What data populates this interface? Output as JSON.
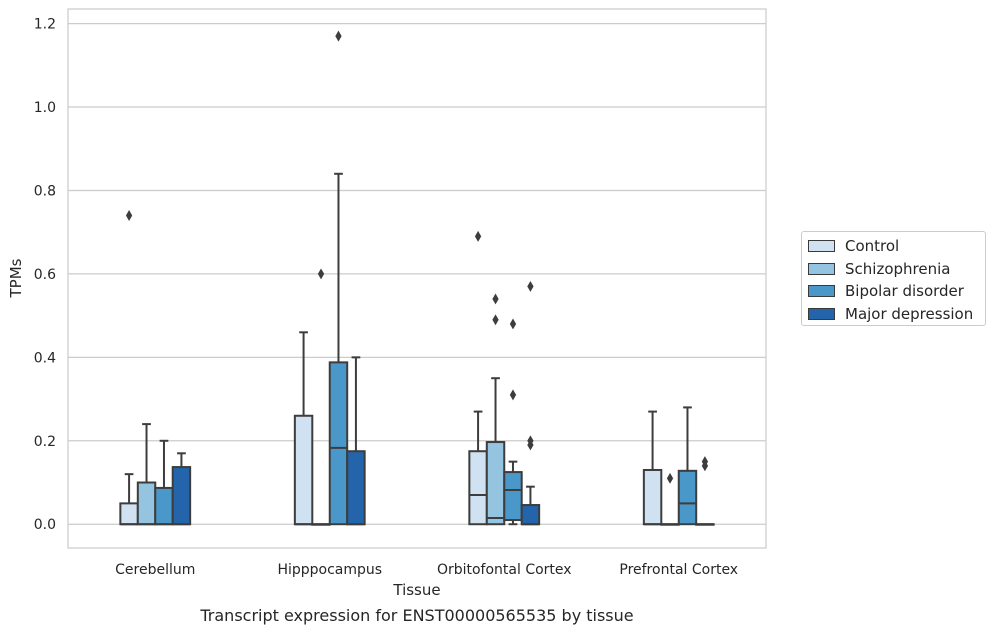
{
  "caption": "Transcript expression for ENST00000565535 by tissue",
  "chart_data": {
    "type": "boxplot",
    "xlabel": "Tissue",
    "ylabel": "TPMs",
    "ylim": [
      -0.057,
      1.235
    ],
    "yticks": [
      0.0,
      0.2,
      0.4,
      0.6,
      0.8,
      1.0,
      1.2
    ],
    "ytick_labels": [
      "0.0",
      "0.2",
      "0.4",
      "0.6",
      "0.8",
      "1.0",
      "1.2"
    ],
    "grid": "horizontal",
    "legend_position": "right-outside",
    "categories": [
      "Cerebellum",
      "Hipppocampus",
      "Orbitofontal Cortex",
      "Prefrontal Cortex"
    ],
    "series": [
      {
        "name": "Control",
        "color": "#d0e1f2",
        "boxes": [
          {
            "q1": 0.0,
            "median": 0.0,
            "q3": 0.05,
            "whislo": 0.0,
            "whishi": 0.12,
            "fliers": [
              0.74
            ]
          },
          {
            "q1": 0.0,
            "median": 0.0,
            "q3": 0.26,
            "whislo": 0.0,
            "whishi": 0.46,
            "fliers": []
          },
          {
            "q1": 0.0,
            "median": 0.07,
            "q3": 0.175,
            "whislo": 0.0,
            "whishi": 0.27,
            "fliers": [
              0.69
            ]
          },
          {
            "q1": 0.0,
            "median": 0.0,
            "q3": 0.13,
            "whislo": 0.0,
            "whishi": 0.27,
            "fliers": []
          }
        ]
      },
      {
        "name": "Schizophrenia",
        "color": "#94c4df",
        "boxes": [
          {
            "q1": 0.0,
            "median": 0.0,
            "q3": 0.1,
            "whislo": 0.0,
            "whishi": 0.24,
            "fliers": []
          },
          {
            "q1": 0.0,
            "median": 0.0,
            "q3": 0.0,
            "whislo": 0.0,
            "whishi": 0.0,
            "fliers": [
              0.6
            ]
          },
          {
            "q1": 0.0,
            "median": 0.015,
            "q3": 0.197,
            "whislo": 0.0,
            "whishi": 0.35,
            "fliers": [
              0.49,
              0.54
            ]
          },
          {
            "q1": 0.0,
            "median": 0.0,
            "q3": 0.0,
            "whislo": 0.0,
            "whishi": 0.0,
            "fliers": [
              0.11
            ]
          }
        ]
      },
      {
        "name": "Bipolar disorder",
        "color": "#4a98c9",
        "boxes": [
          {
            "q1": 0.0,
            "median": 0.0,
            "q3": 0.087,
            "whislo": 0.0,
            "whishi": 0.2,
            "fliers": []
          },
          {
            "q1": 0.0,
            "median": 0.183,
            "q3": 0.388,
            "whislo": 0.0,
            "whishi": 0.84,
            "fliers": [
              1.17
            ]
          },
          {
            "q1": 0.01,
            "median": 0.082,
            "q3": 0.125,
            "whislo": 0.0,
            "whishi": 0.15,
            "fliers": [
              0.31,
              0.48
            ]
          },
          {
            "q1": 0.0,
            "median": 0.05,
            "q3": 0.128,
            "whislo": 0.0,
            "whishi": 0.28,
            "fliers": []
          }
        ]
      },
      {
        "name": "Major depression",
        "color": "#2364aa",
        "boxes": [
          {
            "q1": 0.0,
            "median": 0.0,
            "q3": 0.137,
            "whislo": 0.0,
            "whishi": 0.17,
            "fliers": []
          },
          {
            "q1": 0.0,
            "median": 0.0,
            "q3": 0.175,
            "whislo": 0.0,
            "whishi": 0.4,
            "fliers": []
          },
          {
            "q1": 0.0,
            "median": 0.0,
            "q3": 0.046,
            "whislo": 0.0,
            "whishi": 0.09,
            "fliers": [
              0.19,
              0.2,
              0.57
            ]
          },
          {
            "q1": 0.0,
            "median": 0.0,
            "q3": 0.0,
            "whislo": 0.0,
            "whishi": 0.0,
            "fliers": [
              0.14,
              0.15
            ]
          }
        ]
      }
    ]
  }
}
